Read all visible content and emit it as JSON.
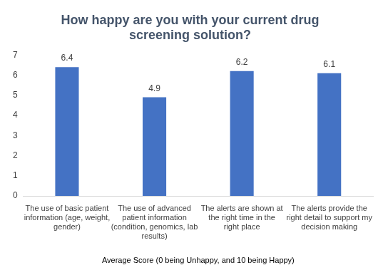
{
  "chart_data": {
    "type": "bar",
    "title": "How happy are you with your current drug screening solution?",
    "x_label": "Average Score (0 being Unhappy, and 10 being Happy)",
    "categories": [
      "The use of basic patient information (age, weight, gender)",
      "The use of advanced patient information (condition, genomics, lab results)",
      "The alerts are shown at the right time in the right place",
      "The alerts provide the right detail to support my decision making"
    ],
    "values": [
      6.4,
      4.9,
      6.2,
      6.1
    ],
    "color": "#4472c4",
    "ylim": [
      0,
      7
    ],
    "yticks": [
      0,
      1,
      2,
      3,
      4,
      5,
      6,
      7
    ],
    "grid": false,
    "data_labels": true
  }
}
